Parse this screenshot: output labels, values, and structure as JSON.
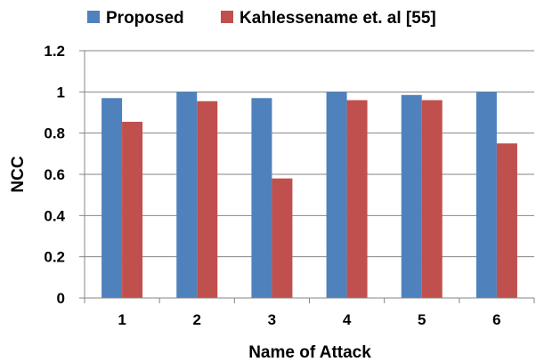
{
  "chart_data": {
    "type": "bar",
    "title": "",
    "xlabel": "Name of Attack",
    "ylabel": "NCC",
    "categories": [
      "1",
      "2",
      "3",
      "4",
      "5",
      "6"
    ],
    "series": [
      {
        "name": "Proposed",
        "color": "#4f81bd",
        "values": [
          0.97,
          1.0,
          0.97,
          1.0,
          0.985,
          1.0
        ]
      },
      {
        "name": "Kahlessename et. al  [55]",
        "color": "#c0504d",
        "values": [
          0.855,
          0.955,
          0.58,
          0.96,
          0.96,
          0.75
        ]
      }
    ],
    "ylim": [
      0,
      1.2
    ],
    "yticks": [
      0,
      0.2,
      0.4,
      0.6,
      0.8,
      1,
      1.2
    ],
    "ytick_labels": [
      "0",
      "0.2",
      "0.4",
      "0.6",
      "0.8",
      "1",
      "1.2"
    ],
    "grid": true,
    "legend_position": "top"
  }
}
